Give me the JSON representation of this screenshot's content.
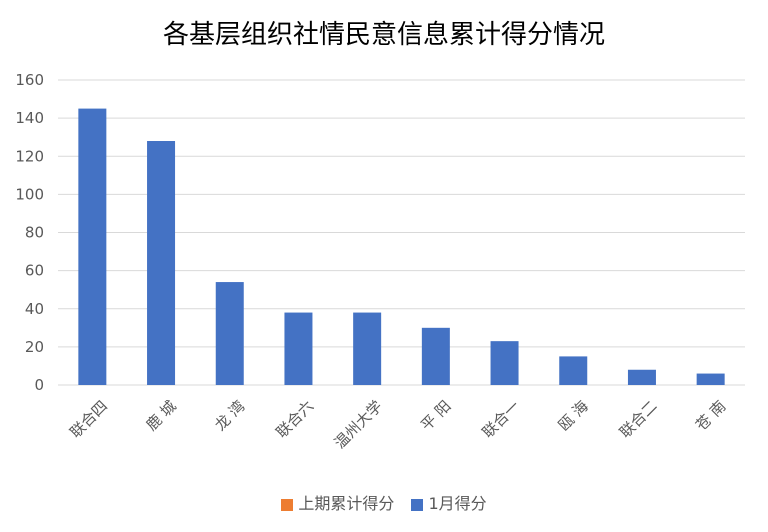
{
  "chart_data": {
    "type": "bar",
    "title": "各基层组织社情民意信息累计得分情况",
    "categories": [
      "联合四",
      "鹿 城",
      "龙 湾",
      "联合六",
      "温州大学",
      "平 阳",
      "联合一",
      "瓯 海",
      "联合二",
      "苍 南"
    ],
    "series": [
      {
        "name": "上期累计得分",
        "color": "#ED7D31",
        "values": [
          0,
          0,
          0,
          0,
          0,
          0,
          0,
          0,
          0,
          0
        ]
      },
      {
        "name": "1月得分",
        "color": "#4472C4",
        "values": [
          145,
          128,
          54,
          38,
          38,
          30,
          23,
          15,
          8,
          6
        ]
      }
    ],
    "ylim": [
      0,
      160
    ],
    "yticks": [
      0,
      20,
      40,
      60,
      80,
      100,
      120,
      140,
      160
    ],
    "grid": true,
    "legend_position": "bottom"
  }
}
